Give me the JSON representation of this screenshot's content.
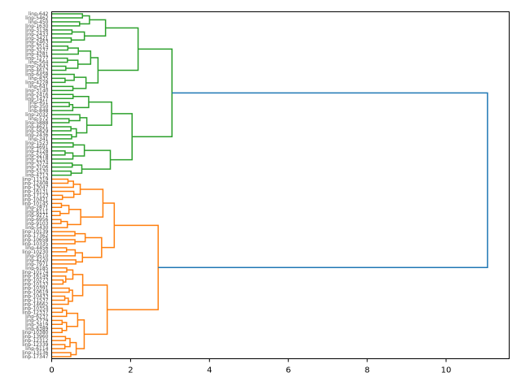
{
  "chart_data": {
    "type": "dendrogram",
    "orientation": "left",
    "xlim": [
      0,
      11.6
    ],
    "x_ticks": [
      "0",
      "2",
      "4",
      "6",
      "8",
      "10"
    ],
    "x_tick_values": [
      0,
      2,
      4,
      6,
      8,
      10
    ],
    "grid": false,
    "clusters": [
      {
        "color": "#2ca02c",
        "leaf_count": 41,
        "merge_height": 3.05
      },
      {
        "color": "#ff7f0e",
        "leaf_count": 42,
        "merge_height": 2.7
      }
    ],
    "root_merge_height": 11.05,
    "root_color": "#1f77b4",
    "leaf_labels": [
      "linp-642",
      "linp-5462",
      "linp-450",
      "linp-1630",
      "linp-3136",
      "linp-2433",
      "linp-3421",
      "linp-2463",
      "linp-3514",
      "linp-3237",
      "linp-4281",
      "linp-1277",
      "linp-564",
      "linp-2643",
      "linp-4613",
      "linp-6458",
      "linp-835",
      "linp-4228",
      "linp-641",
      "linp-3140",
      "linp-2416",
      "linp-1477",
      "linp-451",
      "linp-350",
      "linp-848",
      "linp-2032",
      "linp-572",
      "linp-5888",
      "linp-4621",
      "linp-5829",
      "linp-2436",
      "linp-341",
      "linp-1523",
      "linp-4691",
      "linp-4128",
      "linp-5278",
      "linp-2318",
      "linp-3374",
      "linp-3106",
      "linp-5130",
      "linp-4713",
      "linp-11319",
      "linp-12408",
      "linp-13047",
      "linp-16131",
      "linp-17123",
      "linp-10421",
      "linp-10145",
      "linp-2871",
      "linp-6111",
      "linp-9271",
      "linp-6956",
      "linp-9103",
      "linp-5430",
      "linp-10139",
      "linp-17362",
      "linp-10658",
      "linp-10335",
      "linp-4456",
      "linp-10230",
      "linp-9510",
      "linp-4220",
      "linp-7971",
      "linp-6185",
      "linp-10174",
      "linp-16149",
      "linp-10273",
      "linp-10133",
      "linp-10391",
      "linp-10619",
      "linp-10433",
      "linp-11537",
      "linp-14662",
      "linp-10354",
      "linp-12337",
      "linp-6237",
      "linp-5779",
      "linp-3419",
      "linp-6389",
      "linp-10380",
      "linp-13960",
      "linp-12312",
      "linp-12339",
      "linp-6114",
      "linp-13136",
      "linp-17347"
    ]
  }
}
